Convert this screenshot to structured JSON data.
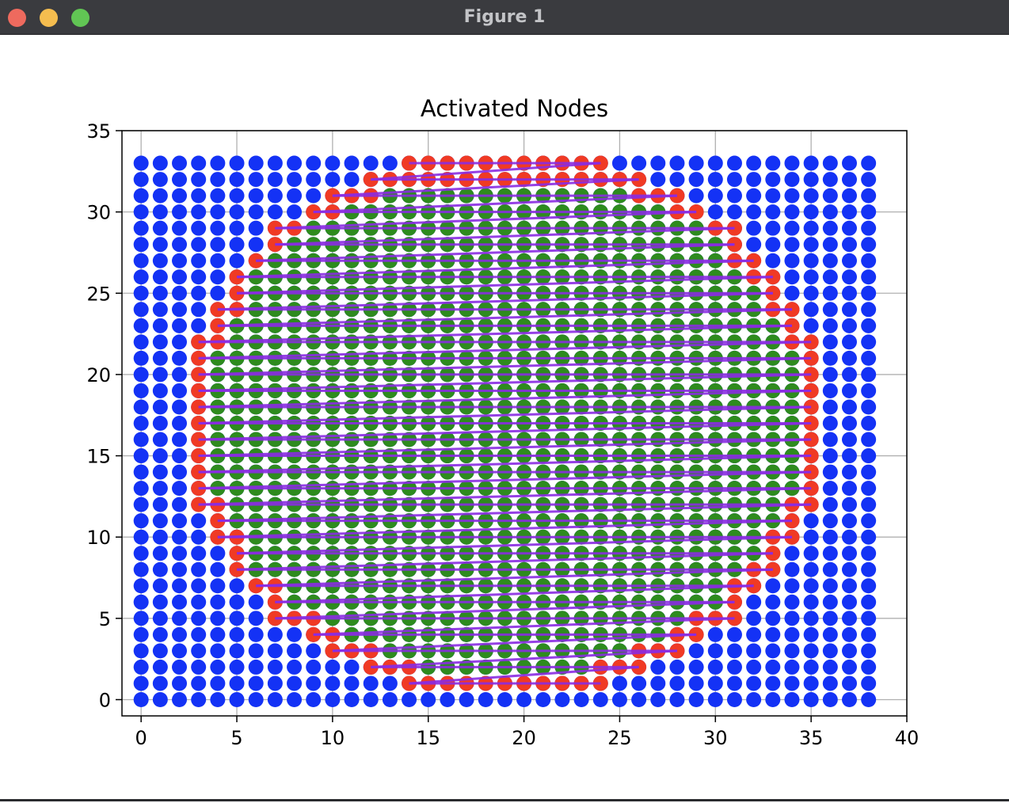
{
  "window": {
    "title": "Figure 1"
  },
  "chart_data": {
    "type": "scatter",
    "title": "Activated Nodes",
    "xlabel": "",
    "ylabel": "",
    "xlim": [
      -1,
      40
    ],
    "ylim": [
      -1,
      35
    ],
    "xticks": [
      0,
      5,
      10,
      15,
      20,
      25,
      30,
      35,
      40
    ],
    "yticks": [
      0,
      5,
      10,
      15,
      20,
      25,
      30,
      35
    ],
    "grid": true,
    "colors": {
      "base": "#1432f5",
      "active": "#f03a24",
      "interior": "#2e8b1e",
      "path": "#8a2be2"
    },
    "grid_points": {
      "x_from": 0,
      "x_to": 38,
      "y_from": 0,
      "y_to": 33
    },
    "series": [
      {
        "role": "base-grid",
        "color": "#1432f5",
        "description_of_points": "every integer (x, y) with 0<=x<=38 and 0<=y<=33"
      },
      {
        "role": "boundary",
        "color": "#f03a24"
      },
      {
        "role": "interior",
        "color": "#2e8b1e"
      },
      {
        "role": "path",
        "color": "#8a2be2",
        "line": true
      }
    ],
    "rows": [
      {
        "y": 33,
        "left": [
          14,
          15,
          16,
          17,
          18,
          19,
          20,
          21,
          22,
          23,
          24
        ],
        "right": [],
        "path": [
          14,
          24
        ],
        "xmin": 14,
        "xmax": 24
      },
      {
        "y": 32,
        "left": [
          12,
          13,
          14,
          15,
          16,
          17,
          18,
          19,
          20,
          21,
          22,
          23,
          24,
          25,
          26
        ],
        "right": [],
        "path": [
          12,
          26
        ],
        "xmin": 12,
        "xmax": 26
      },
      {
        "y": 31,
        "left": [
          10,
          11,
          12
        ],
        "right": [
          26,
          27,
          28
        ],
        "path": [
          10,
          28
        ],
        "xmin": 10,
        "xmax": 28
      },
      {
        "y": 30,
        "left": [
          9,
          10
        ],
        "right": [
          28,
          29
        ],
        "path": [
          9,
          29
        ],
        "xmin": 9,
        "xmax": 29
      },
      {
        "y": 29,
        "left": [
          7,
          8
        ],
        "right": [
          30,
          31
        ],
        "path": [
          7,
          31
        ],
        "xmin": 7,
        "xmax": 31
      },
      {
        "y": 28,
        "left": [
          7
        ],
        "right": [
          31
        ],
        "path": [
          7,
          31
        ],
        "xmin": 7,
        "xmax": 31
      },
      {
        "y": 27,
        "left": [
          6
        ],
        "right": [
          31,
          32
        ],
        "path": [
          6,
          32
        ],
        "xmin": 6,
        "xmax": 32
      },
      {
        "y": 26,
        "left": [
          5
        ],
        "right": [
          32,
          33
        ],
        "path": [
          5,
          33
        ],
        "xmin": 5,
        "xmax": 33
      },
      {
        "y": 25,
        "left": [
          5
        ],
        "right": [
          33
        ],
        "path": [
          5,
          33
        ],
        "xmin": 5,
        "xmax": 33
      },
      {
        "y": 24,
        "left": [
          4,
          5
        ],
        "right": [
          33,
          34
        ],
        "path": [
          4,
          34
        ],
        "xmin": 4,
        "xmax": 34
      },
      {
        "y": 23,
        "left": [
          4
        ],
        "right": [
          34
        ],
        "path": [
          4,
          34
        ],
        "xmin": 4,
        "xmax": 34
      },
      {
        "y": 22,
        "left": [
          3,
          4
        ],
        "right": [
          34,
          35
        ],
        "path": [
          3,
          35
        ],
        "xmin": 3,
        "xmax": 35
      },
      {
        "y": 21,
        "left": [
          3
        ],
        "right": [
          35
        ],
        "path": [
          3,
          35
        ],
        "xmin": 3,
        "xmax": 35
      },
      {
        "y": 20,
        "left": [
          3
        ],
        "right": [
          35
        ],
        "path": [
          3,
          35
        ],
        "xmin": 3,
        "xmax": 35
      },
      {
        "y": 19,
        "left": [
          3
        ],
        "right": [
          35
        ],
        "path": [
          3,
          35
        ],
        "xmin": 3,
        "xmax": 35
      },
      {
        "y": 18,
        "left": [
          3
        ],
        "right": [
          35
        ],
        "path": [
          3,
          35
        ],
        "xmin": 3,
        "xmax": 35
      },
      {
        "y": 17,
        "left": [
          3
        ],
        "right": [
          35
        ],
        "path": [
          3,
          35
        ],
        "xmin": 3,
        "xmax": 35
      },
      {
        "y": 16,
        "left": [
          3
        ],
        "right": [
          35
        ],
        "path": [
          3,
          35
        ],
        "xmin": 3,
        "xmax": 35
      },
      {
        "y": 15,
        "left": [
          3
        ],
        "right": [
          35
        ],
        "path": [
          3,
          35
        ],
        "xmin": 3,
        "xmax": 35
      },
      {
        "y": 14,
        "left": [
          3
        ],
        "right": [
          35
        ],
        "path": [
          3,
          35
        ],
        "xmin": 3,
        "xmax": 35
      },
      {
        "y": 13,
        "left": [
          3
        ],
        "right": [
          35
        ],
        "path": [
          3,
          35
        ],
        "xmin": 3,
        "xmax": 35
      },
      {
        "y": 12,
        "left": [
          3,
          4
        ],
        "right": [
          34,
          35
        ],
        "path": [
          3,
          35
        ],
        "xmin": 3,
        "xmax": 35
      },
      {
        "y": 11,
        "left": [
          4
        ],
        "right": [
          34
        ],
        "path": [
          4,
          34
        ],
        "xmin": 4,
        "xmax": 34
      },
      {
        "y": 10,
        "left": [
          4,
          5
        ],
        "right": [
          33,
          34
        ],
        "path": [
          4,
          34
        ],
        "xmin": 4,
        "xmax": 34
      },
      {
        "y": 9,
        "left": [
          5
        ],
        "right": [
          33
        ],
        "path": [
          5,
          33
        ],
        "xmin": 5,
        "xmax": 33
      },
      {
        "y": 8,
        "left": [
          5
        ],
        "right": [
          32,
          33
        ],
        "path": [
          5,
          33
        ],
        "xmin": 5,
        "xmax": 33
      },
      {
        "y": 7,
        "left": [
          6,
          7
        ],
        "right": [
          31,
          32
        ],
        "path": [
          6,
          32
        ],
        "xmin": 6,
        "xmax": 32
      },
      {
        "y": 6,
        "left": [
          7
        ],
        "right": [
          31
        ],
        "path": [
          7,
          31
        ],
        "xmin": 7,
        "xmax": 31
      },
      {
        "y": 5,
        "left": [
          7,
          8,
          9
        ],
        "right": [
          29,
          30,
          31
        ],
        "path": [
          7,
          31
        ],
        "xmin": 7,
        "xmax": 31
      },
      {
        "y": 4,
        "left": [
          9,
          10
        ],
        "right": [
          28,
          29
        ],
        "path": [
          9,
          29
        ],
        "xmin": 9,
        "xmax": 29
      },
      {
        "y": 3,
        "left": [
          10,
          11,
          12
        ],
        "right": [
          26,
          27,
          28
        ],
        "path": [
          10,
          28
        ],
        "xmin": 10,
        "xmax": 28
      },
      {
        "y": 2,
        "left": [
          12,
          13,
          14
        ],
        "right": [
          24,
          25,
          26
        ],
        "path": [
          12,
          26
        ],
        "xmin": 12,
        "xmax": 26
      },
      {
        "y": 1,
        "left": [
          14,
          15,
          16,
          17,
          18,
          19,
          20,
          21,
          22,
          23,
          24
        ],
        "right": [],
        "path": [
          14,
          24
        ],
        "xmin": 14,
        "xmax": 24
      }
    ]
  }
}
